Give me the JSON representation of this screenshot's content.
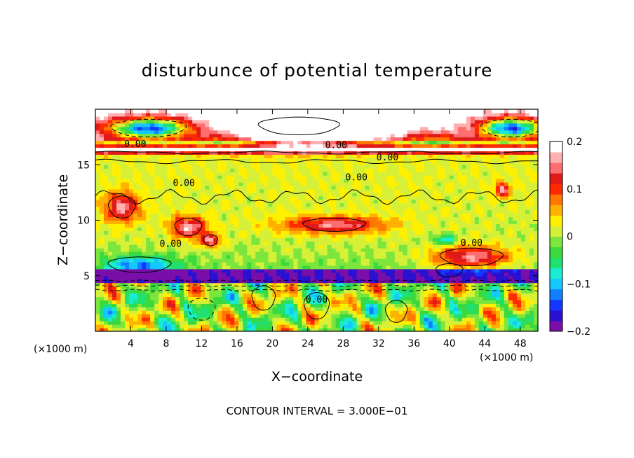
{
  "chart_data": {
    "type": "heatmap",
    "title": "disturbunce of potential temperature",
    "xlabel": "X−coordinate",
    "ylabel": "Z−coordinate",
    "x_unit_label": "(×1000 m)",
    "y_unit_label": "(×1000 m)",
    "xlim": [
      0,
      50
    ],
    "ylim": [
      0,
      20
    ],
    "x_ticks": [
      4,
      8,
      12,
      16,
      20,
      24,
      28,
      32,
      36,
      40,
      44,
      48
    ],
    "y_ticks": [
      5,
      10,
      15
    ],
    "colorbar": {
      "range": [
        -0.2,
        0.2
      ],
      "tick_values": [
        0.2,
        0.1,
        0,
        -0.1,
        -0.2
      ],
      "tick_labels": [
        "0.2",
        "0.1",
        "0",
        "−0.1",
        "−0.2"
      ],
      "colors": [
        "#7a0ea8",
        "#2a10d0",
        "#1437ff",
        "#1080ff",
        "#14c8ff",
        "#18ecd2",
        "#20e070",
        "#3cd93c",
        "#7ce63c",
        "#d6f038",
        "#fff000",
        "#ffb000",
        "#ff7800",
        "#ff2a00",
        "#e01a1a",
        "#ff6e6e",
        "#ffb0b0",
        "#ffffff"
      ]
    },
    "contour_labels": [
      "0.00",
      "0.00",
      "0.00",
      "0.00",
      "0.00",
      "0.00",
      "0.00",
      "0.00"
    ],
    "contour_interval_text": "CONTOUR INTERVAL = 3.000E−01"
  }
}
